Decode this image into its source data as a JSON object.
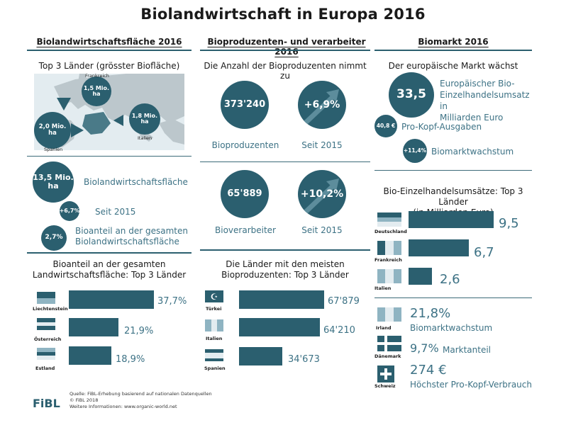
{
  "title": "Biolandwirtschaft in Europa 2016",
  "columns": {
    "left_header": "Biolandwirtschaftsfläche 2016",
    "mid_header": "Bioproduzenten- und verarbeiter 2016",
    "right_header": "Biomarkt 2016"
  },
  "left": {
    "map_heading": "Top 3 Länder (grösster Biofläche)",
    "map_countries": {
      "frankreich": "Frankreich",
      "spanien": "Spanien",
      "italien": "Italien"
    },
    "map_values": {
      "frankreich_num": "1,5 Mio.",
      "frankreich_unit": "ha",
      "spanien_num": "2,0 Mio.",
      "spanien_unit": "ha",
      "italien_num": "1,8 Mio.",
      "italien_unit": "ha"
    },
    "area_num": "13,5 Mio.",
    "area_unit": "ha",
    "area_label": "Biolandwirtschaftsfläche",
    "growth_value": "+6,7%",
    "growth_label": "Seit 2015",
    "share_value": "2,7%",
    "share_label_1": "Bioanteil an der gesamten",
    "share_label_2": "Biolandwirtschaftsfläche",
    "bottom_heading_1": "Bioanteil an der gesamten",
    "bottom_heading_2": "Landwirtschaftsfläche: Top 3 Länder",
    "bottom_bars": [
      {
        "country": "Liechtenstein",
        "value": "37,7%",
        "number": 37.7
      },
      {
        "country": "Österreich",
        "value": "21,9%",
        "number": 21.9
      },
      {
        "country": "Estland",
        "value": "18,9%",
        "number": 18.9
      }
    ]
  },
  "mid": {
    "heading": "Die Anzahl der Bioproduzenten nimmt zu",
    "producers_value": "373'240",
    "producers_label": "Bioproduzenten",
    "producers_growth": "+6,9%",
    "producers_growth_label": "Seit 2015",
    "processors_value": "65'889",
    "processors_label": "Bioverarbeiter",
    "processors_growth": "+10,2%",
    "processors_growth_label": "Seit 2015",
    "bottom_heading_1": "Die Länder mit den meisten",
    "bottom_heading_2": "Bioproduzenten: Top 3 Länder",
    "bottom_bars": [
      {
        "country": "Türkei",
        "value": "67'879",
        "number": 67879
      },
      {
        "country": "Italien",
        "value": "64'210",
        "number": 64210
      },
      {
        "country": "Spanien",
        "value": "34'673",
        "number": 34673
      }
    ]
  },
  "right": {
    "heading": "Der europäische Markt wächst",
    "market_value": "33,5",
    "market_label_1": "Europäischer Bio-",
    "market_label_2": "Einzelhandelsumsatz in",
    "market_label_3": "Milliarden Euro",
    "percap_value": "40,8 €",
    "percap_label": "Pro-Kopf-Ausgaben",
    "growth_value": "+11,4%",
    "growth_label": "Biomarktwachstum",
    "retail_heading_1": "Bio-Einzelhandelsumsätze: Top 3 Länder",
    "retail_heading_2": "(in Milliarden Euro)",
    "retail_bars": [
      {
        "country": "Deutschland",
        "value": "9,5",
        "number": 9.5
      },
      {
        "country": "Frankreich",
        "value": "6,7",
        "number": 6.7
      },
      {
        "country": "Italien",
        "value": "2,6",
        "number": 2.6
      }
    ],
    "irland_country": "Irland",
    "irland_value": "21,8%",
    "irland_label": "Biomarktwachstum",
    "daenemark_country": "Dänemark",
    "daenemark_value": "9,7%",
    "daenemark_label": "Marktanteil",
    "schweiz_country": "Schweiz",
    "schweiz_value": "274 €",
    "schweiz_label": "Höchster Pro-Kopf-Verbrauch"
  },
  "footer": {
    "logo": "FiBL",
    "line1": "Quelle: FiBL-Erhebung basierend auf nationalen Datenquellen",
    "line2": "© FiBL 2018",
    "line3": "Weitere Informationen: www.organic-world.net"
  },
  "colors": {
    "primary": "#2b5f6f",
    "text_light": "#3d7285",
    "flag_light": "#8fb4c2"
  }
}
